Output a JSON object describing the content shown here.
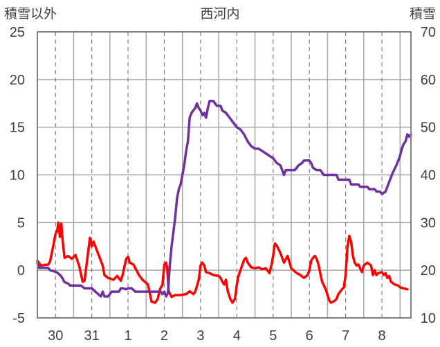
{
  "chart_data": {
    "type": "line",
    "title": "西河内",
    "ylabel_left": "積雪以外",
    "ylabel_right": "積雪",
    "ylim_left": [
      -5,
      25
    ],
    "ylim_right": [
      10,
      70
    ],
    "yticks_left": [
      "-5",
      "0",
      "5",
      "10",
      "15",
      "20",
      "25"
    ],
    "yticks_right": [
      "10",
      "20",
      "30",
      "40",
      "50",
      "60",
      "70"
    ],
    "x_range": [
      0,
      10.3
    ],
    "day_ticks": [
      {
        "label": "30",
        "x": 0.5
      },
      {
        "label": "31",
        "x": 1.5
      },
      {
        "label": "1",
        "x": 2.5
      },
      {
        "label": "2",
        "x": 3.5
      },
      {
        "label": "3",
        "x": 4.5
      },
      {
        "label": "4",
        "x": 5.5
      },
      {
        "label": "5",
        "x": 6.5
      },
      {
        "label": "6",
        "x": 7.5
      },
      {
        "label": "7",
        "x": 8.5
      },
      {
        "label": "8",
        "x": 9.5
      }
    ],
    "major_gridlines_x": [
      0.5,
      1.5,
      2.5,
      3.5,
      4.5,
      5.5,
      6.5,
      7.5,
      8.5,
      9.5
    ],
    "minor_gridlines_x": [
      1.0,
      2.0,
      3.0,
      4.0,
      5.0,
      6.0,
      7.0,
      8.0,
      9.0,
      10.0
    ],
    "grid": true,
    "series": [
      {
        "axis": "left",
        "color": "#ff0000",
        "points": [
          [
            0.0,
            1.0
          ],
          [
            0.1,
            0.5
          ],
          [
            0.3,
            0.6
          ],
          [
            0.35,
            0.9
          ],
          [
            0.45,
            2.8
          ],
          [
            0.5,
            3.8
          ],
          [
            0.55,
            4.2
          ],
          [
            0.58,
            5.0
          ],
          [
            0.62,
            3.5
          ],
          [
            0.66,
            4.9
          ],
          [
            0.7,
            3.0
          ],
          [
            0.75,
            1.3
          ],
          [
            0.85,
            1.5
          ],
          [
            0.95,
            1.2
          ],
          [
            1.05,
            1.6
          ],
          [
            1.15,
            0.5
          ],
          [
            1.25,
            -1.2
          ],
          [
            1.3,
            -1.1
          ],
          [
            1.35,
            0.4
          ],
          [
            1.45,
            3.4
          ],
          [
            1.5,
            2.5
          ],
          [
            1.55,
            3.0
          ],
          [
            1.65,
            2.0
          ],
          [
            1.8,
            0.5
          ],
          [
            1.85,
            -0.5
          ],
          [
            1.95,
            -0.8
          ],
          [
            2.1,
            -1.0
          ],
          [
            2.2,
            -0.6
          ],
          [
            2.3,
            -1.1
          ],
          [
            2.35,
            -0.5
          ],
          [
            2.45,
            1.2
          ],
          [
            2.5,
            1.4
          ],
          [
            2.55,
            0.8
          ],
          [
            2.65,
            0.6
          ],
          [
            2.8,
            -0.5
          ],
          [
            2.9,
            -1.0
          ],
          [
            3.05,
            -1.5
          ],
          [
            3.15,
            -3.3
          ],
          [
            3.25,
            -3.4
          ],
          [
            3.32,
            -3.0
          ],
          [
            3.38,
            -2.0
          ],
          [
            3.45,
            -1.5
          ],
          [
            3.5,
            0.6
          ],
          [
            3.55,
            0.8
          ],
          [
            3.58,
            0.2
          ],
          [
            3.62,
            -2.2
          ],
          [
            3.7,
            -2.8
          ],
          [
            3.8,
            -2.6
          ],
          [
            3.95,
            -2.6
          ],
          [
            4.1,
            -2.5
          ],
          [
            4.2,
            -2.2
          ],
          [
            4.3,
            -2.5
          ],
          [
            4.35,
            -2.3
          ],
          [
            4.45,
            -1.0
          ],
          [
            4.5,
            0.5
          ],
          [
            4.55,
            0.8
          ],
          [
            4.6,
            0.5
          ],
          [
            4.65,
            -0.2
          ],
          [
            4.75,
            -0.3
          ],
          [
            4.85,
            -0.5
          ],
          [
            5.0,
            -0.6
          ],
          [
            5.05,
            -0.8
          ],
          [
            5.1,
            -1.2
          ],
          [
            5.15,
            -1.5
          ],
          [
            5.2,
            -1.0
          ],
          [
            5.25,
            -2.2
          ],
          [
            5.32,
            -3.0
          ],
          [
            5.38,
            -3.4
          ],
          [
            5.45,
            -3.0
          ],
          [
            5.5,
            -1.5
          ],
          [
            5.55,
            -0.5
          ],
          [
            5.6,
            0.0
          ],
          [
            5.7,
            1.1
          ],
          [
            5.75,
            1.3
          ],
          [
            5.8,
            0.8
          ],
          [
            5.9,
            0.3
          ],
          [
            6.0,
            0.2
          ],
          [
            6.1,
            0.3
          ],
          [
            6.2,
            0.1
          ],
          [
            6.3,
            0.2
          ],
          [
            6.4,
            -0.3
          ],
          [
            6.45,
            0.5
          ],
          [
            6.5,
            1.5
          ],
          [
            6.55,
            2.8
          ],
          [
            6.6,
            2.6
          ],
          [
            6.65,
            2.2
          ],
          [
            6.7,
            1.8
          ],
          [
            6.75,
            1.3
          ],
          [
            6.8,
            0.8
          ],
          [
            6.9,
            1.5
          ],
          [
            7.0,
            0.2
          ],
          [
            7.15,
            -0.3
          ],
          [
            7.25,
            -0.5
          ],
          [
            7.35,
            -0.8
          ],
          [
            7.45,
            -0.5
          ],
          [
            7.5,
            0.0
          ],
          [
            7.55,
            1.0
          ],
          [
            7.6,
            1.3
          ],
          [
            7.65,
            1.5
          ],
          [
            7.7,
            1.2
          ],
          [
            7.75,
            0.6
          ],
          [
            7.8,
            -0.3
          ],
          [
            7.85,
            -1.2
          ],
          [
            7.95,
            -2.0
          ],
          [
            8.0,
            -2.6
          ],
          [
            8.05,
            -3.2
          ],
          [
            8.1,
            -3.4
          ],
          [
            8.2,
            -3.2
          ],
          [
            8.25,
            -3.0
          ],
          [
            8.3,
            -2.5
          ],
          [
            8.4,
            -2.0
          ],
          [
            8.45,
            -1.8
          ],
          [
            8.5,
            -0.5
          ],
          [
            8.55,
            2.5
          ],
          [
            8.6,
            3.6
          ],
          [
            8.65,
            3.0
          ],
          [
            8.7,
            1.5
          ],
          [
            8.75,
            0.8
          ],
          [
            8.8,
            0.5
          ],
          [
            8.85,
            0.6
          ],
          [
            8.9,
            0.2
          ],
          [
            8.95,
            -0.2
          ],
          [
            9.0,
            0.5
          ],
          [
            9.1,
            0.8
          ],
          [
            9.2,
            0.5
          ],
          [
            9.25,
            -0.5
          ],
          [
            9.3,
            0.0
          ],
          [
            9.35,
            -0.5
          ],
          [
            9.4,
            -0.3
          ],
          [
            9.5,
            -0.2
          ],
          [
            9.55,
            -0.5
          ],
          [
            9.6,
            -0.3
          ],
          [
            9.65,
            -0.8
          ],
          [
            9.7,
            -0.6
          ],
          [
            9.75,
            -1.2
          ],
          [
            9.85,
            -1.5
          ],
          [
            9.95,
            -1.6
          ],
          [
            10.0,
            -1.8
          ],
          [
            10.1,
            -1.9
          ],
          [
            10.2,
            -2.0
          ]
        ]
      },
      {
        "axis": "right",
        "color": "#7030a0",
        "points": [
          [
            0.0,
            21.5
          ],
          [
            0.05,
            20.5
          ],
          [
            0.3,
            20.5
          ],
          [
            0.35,
            20
          ],
          [
            0.45,
            19.8
          ],
          [
            0.55,
            19.5
          ],
          [
            0.65,
            18.8
          ],
          [
            0.7,
            18.2
          ],
          [
            0.75,
            17.5
          ],
          [
            0.85,
            17.2
          ],
          [
            0.9,
            16.8
          ],
          [
            1.0,
            16.8
          ],
          [
            1.2,
            16.8
          ],
          [
            1.3,
            16.2
          ],
          [
            1.5,
            16.2
          ],
          [
            1.6,
            15.5
          ],
          [
            1.65,
            15.2
          ],
          [
            1.75,
            14.5
          ],
          [
            1.8,
            15.5
          ],
          [
            1.85,
            14.5
          ],
          [
            1.95,
            14.5
          ],
          [
            2.05,
            15.5
          ],
          [
            2.25,
            15.5
          ],
          [
            2.3,
            16.2
          ],
          [
            2.35,
            16.2
          ],
          [
            2.45,
            16.0
          ],
          [
            2.5,
            16.2
          ],
          [
            2.6,
            16.2
          ],
          [
            2.7,
            15.5
          ],
          [
            2.85,
            15.5
          ],
          [
            3.0,
            15.5
          ],
          [
            3.2,
            15.5
          ],
          [
            3.3,
            15.5
          ],
          [
            3.4,
            15.5
          ],
          [
            3.45,
            15.0
          ],
          [
            3.5,
            15.5
          ],
          [
            3.55,
            14.5
          ],
          [
            3.6,
            15.2
          ],
          [
            3.65,
            21.0
          ],
          [
            3.7,
            25.0
          ],
          [
            3.75,
            28.0
          ],
          [
            3.8,
            31.0
          ],
          [
            3.85,
            35.0
          ],
          [
            3.9,
            37.0
          ],
          [
            3.95,
            38.0
          ],
          [
            4.0,
            40.0
          ],
          [
            4.05,
            42.0
          ],
          [
            4.1,
            45.0
          ],
          [
            4.15,
            47.0
          ],
          [
            4.2,
            52.0
          ],
          [
            4.25,
            53.0
          ],
          [
            4.3,
            53.5
          ],
          [
            4.35,
            54.0
          ],
          [
            4.4,
            55.0
          ],
          [
            4.45,
            54.0
          ],
          [
            4.5,
            53.5
          ],
          [
            4.55,
            52.5
          ],
          [
            4.6,
            53.0
          ],
          [
            4.65,
            52.0
          ],
          [
            4.7,
            54.0
          ],
          [
            4.75,
            55.5
          ],
          [
            4.85,
            55.5
          ],
          [
            4.9,
            55.0
          ],
          [
            4.95,
            54.5
          ],
          [
            5.05,
            54.5
          ],
          [
            5.1,
            53.5
          ],
          [
            5.2,
            53.0
          ],
          [
            5.3,
            52.0
          ],
          [
            5.4,
            51.0
          ],
          [
            5.5,
            50.0
          ],
          [
            5.6,
            49.5
          ],
          [
            5.7,
            48.5
          ],
          [
            5.8,
            47.0
          ],
          [
            5.9,
            46.0
          ],
          [
            6.0,
            45.5
          ],
          [
            6.1,
            45.5
          ],
          [
            6.2,
            45.0
          ],
          [
            6.3,
            44.5
          ],
          [
            6.4,
            44.0
          ],
          [
            6.5,
            43.5
          ],
          [
            6.6,
            42.5
          ],
          [
            6.7,
            42.0
          ],
          [
            6.75,
            41.0
          ],
          [
            6.8,
            40.0
          ],
          [
            6.85,
            41.0
          ],
          [
            7.0,
            41.0
          ],
          [
            7.1,
            41.0
          ],
          [
            7.15,
            41.5
          ],
          [
            7.2,
            42.0
          ],
          [
            7.3,
            42.5
          ],
          [
            7.35,
            43.0
          ],
          [
            7.45,
            43.0
          ],
          [
            7.5,
            43.0
          ],
          [
            7.55,
            42.5
          ],
          [
            7.6,
            41.5
          ],
          [
            7.7,
            41.0
          ],
          [
            7.8,
            41.0
          ],
          [
            7.85,
            40.5
          ],
          [
            7.9,
            40.0
          ],
          [
            8.05,
            40.0
          ],
          [
            8.25,
            40.0
          ],
          [
            8.3,
            39.0
          ],
          [
            8.5,
            39.0
          ],
          [
            8.6,
            39.0
          ],
          [
            8.65,
            38.0
          ],
          [
            8.75,
            38.0
          ],
          [
            8.85,
            38.0
          ],
          [
            8.9,
            37.5
          ],
          [
            9.0,
            37.5
          ],
          [
            9.1,
            37.5
          ],
          [
            9.15,
            37.0
          ],
          [
            9.25,
            37.0
          ],
          [
            9.3,
            37.0
          ],
          [
            9.35,
            36.5
          ],
          [
            9.4,
            36.5
          ],
          [
            9.45,
            36.5
          ],
          [
            9.5,
            36.0
          ],
          [
            9.6,
            36.5
          ],
          [
            9.65,
            37.5
          ],
          [
            9.7,
            38.5
          ],
          [
            9.8,
            40.5
          ],
          [
            9.9,
            42.0
          ],
          [
            10.0,
            44.0
          ],
          [
            10.05,
            45.5
          ],
          [
            10.1,
            46.5
          ],
          [
            10.15,
            47.0
          ],
          [
            10.2,
            48.5
          ],
          [
            10.25,
            48.0
          ],
          [
            10.3,
            48.5
          ]
        ]
      }
    ]
  }
}
